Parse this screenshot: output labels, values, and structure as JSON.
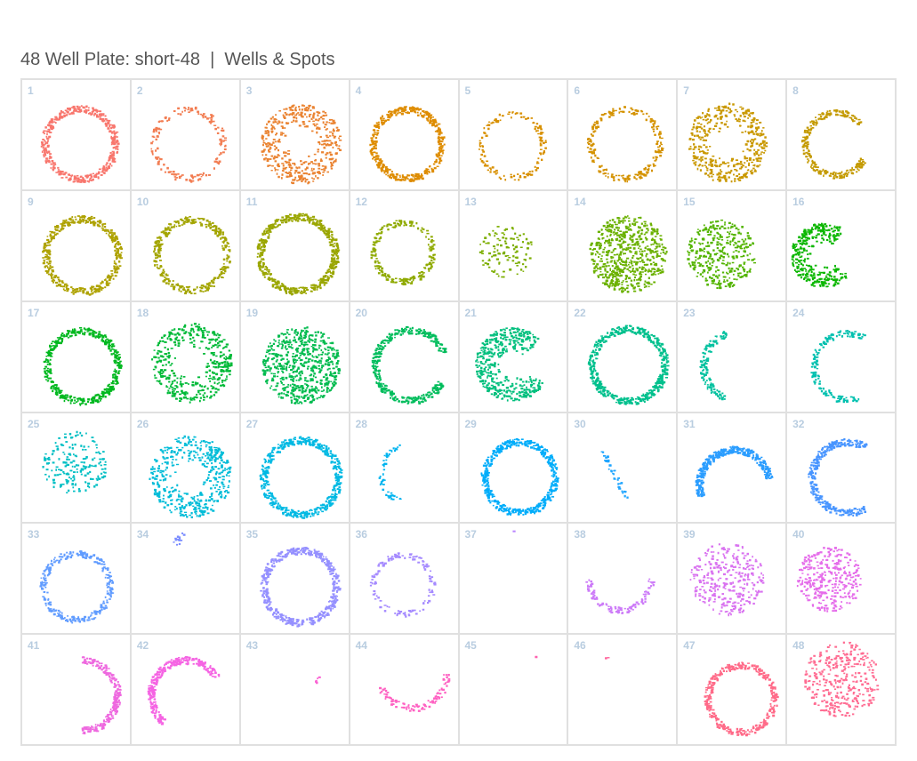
{
  "page_title": "48 Well Plate: short-48  |  Wells & Spots",
  "chart_data": {
    "type": "scatter",
    "title": "48 Well Plate: short-48  |  Wells & Spots",
    "layout": "8 columns x 6 rows small multiples",
    "grid": true,
    "wells": [
      {
        "label": "1",
        "color": "#F8766D",
        "pattern": "ring-dense",
        "cx": 0.53,
        "cy": 0.58,
        "r": 0.36,
        "start_deg": 0,
        "end_deg": 360,
        "count": 420
      },
      {
        "label": "2",
        "color": "#F27D52",
        "pattern": "ring-sparse",
        "cx": 0.52,
        "cy": 0.58,
        "r": 0.35,
        "start_deg": 0,
        "end_deg": 360,
        "count": 160
      },
      {
        "label": "3",
        "color": "#EA8331",
        "pattern": "filled-ring",
        "cx": 0.55,
        "cy": 0.58,
        "r": 0.37,
        "start_deg": 0,
        "end_deg": 360,
        "count": 420
      },
      {
        "label": "4",
        "color": "#DE8C00",
        "pattern": "ring-dense",
        "cx": 0.52,
        "cy": 0.58,
        "r": 0.35,
        "start_deg": 0,
        "end_deg": 360,
        "count": 400
      },
      {
        "label": "5",
        "color": "#D89000",
        "pattern": "ring-sparse",
        "cx": 0.48,
        "cy": 0.6,
        "r": 0.32,
        "start_deg": 0,
        "end_deg": 360,
        "count": 130
      },
      {
        "label": "6",
        "color": "#D49200",
        "pattern": "ring",
        "cx": 0.52,
        "cy": 0.58,
        "r": 0.35,
        "start_deg": 0,
        "end_deg": 360,
        "count": 230
      },
      {
        "label": "7",
        "color": "#C99800",
        "pattern": "filled-ring",
        "cx": 0.45,
        "cy": 0.57,
        "r": 0.37,
        "start_deg": 0,
        "end_deg": 360,
        "count": 400
      },
      {
        "label": "8",
        "color": "#C49A00",
        "pattern": "c-shape",
        "cx": 0.45,
        "cy": 0.58,
        "r": 0.32,
        "start_deg": 40,
        "end_deg": 330,
        "count": 250
      },
      {
        "label": "9",
        "color": "#AEA200",
        "pattern": "ring-dense",
        "cx": 0.55,
        "cy": 0.58,
        "r": 0.37,
        "start_deg": 0,
        "end_deg": 360,
        "count": 420
      },
      {
        "label": "10",
        "color": "#A3A500",
        "pattern": "ring",
        "cx": 0.55,
        "cy": 0.58,
        "r": 0.36,
        "start_deg": 0,
        "end_deg": 360,
        "count": 330
      },
      {
        "label": "11",
        "color": "#9AA600",
        "pattern": "ring-dense",
        "cx": 0.52,
        "cy": 0.57,
        "r": 0.38,
        "start_deg": 0,
        "end_deg": 360,
        "count": 520
      },
      {
        "label": "12",
        "color": "#8FAA00",
        "pattern": "ring",
        "cx": 0.48,
        "cy": 0.55,
        "r": 0.3,
        "start_deg": 0,
        "end_deg": 360,
        "count": 210
      },
      {
        "label": "13",
        "color": "#7CAE00",
        "pattern": "blob-sparse",
        "cx": 0.42,
        "cy": 0.55,
        "r": 0.25,
        "start_deg": 0,
        "end_deg": 360,
        "count": 110
      },
      {
        "label": "14",
        "color": "#6BB100",
        "pattern": "filled",
        "cx": 0.55,
        "cy": 0.57,
        "r": 0.36,
        "start_deg": 0,
        "end_deg": 360,
        "count": 600
      },
      {
        "label": "15",
        "color": "#53B400",
        "pattern": "filled",
        "cx": 0.4,
        "cy": 0.57,
        "r": 0.32,
        "start_deg": 0,
        "end_deg": 360,
        "count": 330
      },
      {
        "label": "16",
        "color": "#0CB702",
        "pattern": "c-filled",
        "cx": 0.33,
        "cy": 0.58,
        "r": 0.3,
        "start_deg": 50,
        "end_deg": 320,
        "count": 320
      },
      {
        "label": "17",
        "color": "#00B81F",
        "pattern": "ring-dense",
        "cx": 0.55,
        "cy": 0.58,
        "r": 0.36,
        "start_deg": 0,
        "end_deg": 360,
        "count": 420
      },
      {
        "label": "18",
        "color": "#00BA38",
        "pattern": "filled-ring",
        "cx": 0.55,
        "cy": 0.55,
        "r": 0.37,
        "start_deg": 0,
        "end_deg": 360,
        "count": 420
      },
      {
        "label": "19",
        "color": "#00BB4E",
        "pattern": "filled",
        "cx": 0.55,
        "cy": 0.57,
        "r": 0.36,
        "start_deg": 0,
        "end_deg": 360,
        "count": 600
      },
      {
        "label": "20",
        "color": "#00BD5C",
        "pattern": "c-shape",
        "cx": 0.55,
        "cy": 0.57,
        "r": 0.36,
        "start_deg": 20,
        "end_deg": 330,
        "count": 360
      },
      {
        "label": "21",
        "color": "#00BF7D",
        "pattern": "c-filled",
        "cx": 0.48,
        "cy": 0.56,
        "r": 0.34,
        "start_deg": 40,
        "end_deg": 330,
        "count": 420
      },
      {
        "label": "22",
        "color": "#00C08D",
        "pattern": "ring-dense",
        "cx": 0.55,
        "cy": 0.57,
        "r": 0.37,
        "start_deg": 0,
        "end_deg": 360,
        "count": 500
      },
      {
        "label": "23",
        "color": "#00C19F",
        "pattern": "arc-left",
        "cx": 0.55,
        "cy": 0.58,
        "r": 0.35,
        "start_deg": 110,
        "end_deg": 250,
        "count": 120
      },
      {
        "label": "24",
        "color": "#00C0AF",
        "pattern": "c-shape",
        "cx": 0.55,
        "cy": 0.58,
        "r": 0.34,
        "start_deg": 60,
        "end_deg": 290,
        "count": 150
      },
      {
        "label": "25",
        "color": "#00BFC4",
        "pattern": "blob-sparse",
        "cx": 0.48,
        "cy": 0.45,
        "r": 0.3,
        "start_deg": 0,
        "end_deg": 360,
        "count": 180
      },
      {
        "label": "26",
        "color": "#00BCD8",
        "pattern": "filled-ring",
        "cx": 0.54,
        "cy": 0.57,
        "r": 0.38,
        "start_deg": 0,
        "end_deg": 360,
        "count": 430
      },
      {
        "label": "27",
        "color": "#00B9E3",
        "pattern": "ring-dense",
        "cx": 0.55,
        "cy": 0.58,
        "r": 0.38,
        "start_deg": 0,
        "end_deg": 360,
        "count": 480
      },
      {
        "label": "28",
        "color": "#00B4EF",
        "pattern": "arc-left",
        "cx": 0.55,
        "cy": 0.55,
        "r": 0.3,
        "start_deg": 110,
        "end_deg": 250,
        "count": 50
      },
      {
        "label": "29",
        "color": "#00ADFA",
        "pattern": "ring-dense",
        "cx": 0.55,
        "cy": 0.58,
        "r": 0.36,
        "start_deg": 0,
        "end_deg": 360,
        "count": 450
      },
      {
        "label": "30",
        "color": "#1FA5FF",
        "pattern": "streak",
        "cx": 0.42,
        "cy": 0.55,
        "r": 0.25,
        "start_deg": 0,
        "end_deg": 360,
        "count": 40
      },
      {
        "label": "31",
        "color": "#2A9DFF",
        "pattern": "arc-top",
        "cx": 0.52,
        "cy": 0.65,
        "r": 0.36,
        "start_deg": 10,
        "end_deg": 200,
        "count": 330
      },
      {
        "label": "32",
        "color": "#4895FF",
        "pattern": "arc-left",
        "cx": 0.55,
        "cy": 0.58,
        "r": 0.36,
        "start_deg": 60,
        "end_deg": 300,
        "count": 330
      },
      {
        "label": "33",
        "color": "#619CFF",
        "pattern": "ring",
        "cx": 0.5,
        "cy": 0.57,
        "r": 0.34,
        "start_deg": 0,
        "end_deg": 360,
        "count": 260
      },
      {
        "label": "34",
        "color": "#7B8DFF",
        "pattern": "tiny",
        "cx": 0.42,
        "cy": 0.14,
        "r": 0.08,
        "start_deg": 0,
        "end_deg": 360,
        "count": 14
      },
      {
        "label": "35",
        "color": "#9590FF",
        "pattern": "ring-dense",
        "cx": 0.54,
        "cy": 0.57,
        "r": 0.37,
        "start_deg": 0,
        "end_deg": 360,
        "count": 450
      },
      {
        "label": "36",
        "color": "#A58AFF",
        "pattern": "ring-sparse",
        "cx": 0.48,
        "cy": 0.55,
        "r": 0.3,
        "start_deg": 0,
        "end_deg": 360,
        "count": 120
      },
      {
        "label": "37",
        "color": "#B983FF",
        "pattern": "tiny",
        "cx": 0.5,
        "cy": 0.05,
        "r": 0.02,
        "start_deg": 0,
        "end_deg": 360,
        "count": 1
      },
      {
        "label": "38",
        "color": "#CC7AF8",
        "pattern": "arc-bottom",
        "cx": 0.47,
        "cy": 0.5,
        "r": 0.32,
        "start_deg": 180,
        "end_deg": 360,
        "count": 110
      },
      {
        "label": "39",
        "color": "#D973F0",
        "pattern": "filled",
        "cx": 0.45,
        "cy": 0.5,
        "r": 0.34,
        "start_deg": 0,
        "end_deg": 360,
        "count": 300
      },
      {
        "label": "40",
        "color": "#E56DEA",
        "pattern": "filled",
        "cx": 0.38,
        "cy": 0.5,
        "r": 0.3,
        "start_deg": 0,
        "end_deg": 360,
        "count": 320
      },
      {
        "label": "41",
        "color": "#EE68DF",
        "pattern": "arc-right",
        "cx": 0.55,
        "cy": 0.55,
        "r": 0.36,
        "start_deg": 270,
        "end_deg": 450,
        "count": 230
      },
      {
        "label": "42",
        "color": "#F564E3",
        "pattern": "arc-top",
        "cx": 0.5,
        "cy": 0.55,
        "r": 0.36,
        "start_deg": 30,
        "end_deg": 230,
        "count": 300
      },
      {
        "label": "43",
        "color": "#FA62D3",
        "pattern": "tiny",
        "cx": 0.7,
        "cy": 0.4,
        "r": 0.03,
        "start_deg": 0,
        "end_deg": 360,
        "count": 6
      },
      {
        "label": "44",
        "color": "#FE61C2",
        "pattern": "arc-bottom",
        "cx": 0.57,
        "cy": 0.35,
        "r": 0.35,
        "start_deg": 200,
        "end_deg": 360,
        "count": 100
      },
      {
        "label": "45",
        "color": "#FF62B0",
        "pattern": "tiny",
        "cx": 0.7,
        "cy": 0.2,
        "r": 0.02,
        "start_deg": 0,
        "end_deg": 360,
        "count": 2
      },
      {
        "label": "46",
        "color": "#FF659C",
        "pattern": "tiny",
        "cx": 0.35,
        "cy": 0.22,
        "r": 0.02,
        "start_deg": 0,
        "end_deg": 360,
        "count": 2
      },
      {
        "label": "47",
        "color": "#FF6A88",
        "pattern": "ring-dense",
        "cx": 0.58,
        "cy": 0.58,
        "r": 0.34,
        "start_deg": 0,
        "end_deg": 360,
        "count": 330
      },
      {
        "label": "48",
        "color": "#FF6C92",
        "pattern": "filled",
        "cx": 0.5,
        "cy": 0.4,
        "r": 0.35,
        "start_deg": 0,
        "end_deg": 360,
        "count": 320
      }
    ]
  }
}
